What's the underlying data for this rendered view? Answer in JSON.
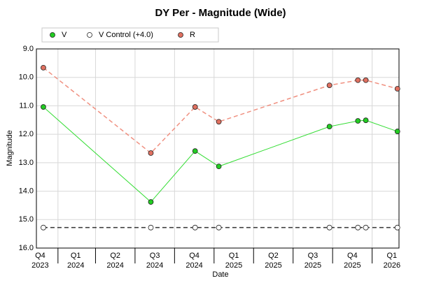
{
  "chart_data": {
    "type": "line",
    "title": "DY Per - Magnitude (Wide)",
    "x_label": "Date",
    "y_label": "Magnitude",
    "x": [
      2023.92,
      2024.6,
      2024.88,
      2025.03,
      2025.73,
      2025.91,
      2025.96,
      2026.16
    ],
    "series": [
      {
        "name": "V",
        "color": "#33dd33",
        "marker_fill": "#22cc22",
        "line_style": "solid",
        "values": [
          11.04,
          14.38,
          12.59,
          13.13,
          11.73,
          11.53,
          11.51,
          11.9
        ]
      },
      {
        "name": "V Control (+4.0)",
        "color": "#333333",
        "marker_fill": "#ffffff",
        "line_style": "dashed",
        "values": [
          15.28,
          15.28,
          15.28,
          15.28,
          15.28,
          15.28,
          15.28,
          15.28
        ]
      },
      {
        "name": "R",
        "color": "#f09080",
        "marker_fill": "#e07060",
        "line_style": "dashed",
        "values": [
          9.66,
          12.66,
          11.04,
          11.56,
          10.28,
          10.1,
          10.1,
          10.4
        ]
      }
    ],
    "xlim": [
      2023.876,
      2026.17
    ],
    "xticks": [
      {
        "value": 2023.9,
        "label": "Q4 2023"
      },
      {
        "value": 2024.125,
        "label": "Q1 2024"
      },
      {
        "value": 2024.375,
        "label": "Q2 2024"
      },
      {
        "value": 2024.625,
        "label": "Q3 2024"
      },
      {
        "value": 2024.875,
        "label": "Q4 2024"
      },
      {
        "value": 2025.125,
        "label": "Q1 2025"
      },
      {
        "value": 2025.375,
        "label": "Q2 2025"
      },
      {
        "value": 2025.625,
        "label": "Q3 2025"
      },
      {
        "value": 2025.875,
        "label": "Q4 2025"
      },
      {
        "value": 2026.125,
        "label": "Q1 2026"
      }
    ],
    "ylim": [
      9,
      16
    ],
    "y_inverted": true,
    "yticks": [
      {
        "value": 9,
        "label": "9.0"
      },
      {
        "value": 10,
        "label": "10.0"
      },
      {
        "value": 11,
        "label": "11.0"
      },
      {
        "value": 12,
        "label": "12.0"
      },
      {
        "value": 13,
        "label": "13.0"
      },
      {
        "value": 14,
        "label": "14.0"
      },
      {
        "value": 15,
        "label": "15.0"
      },
      {
        "value": 16,
        "label": "16.0"
      }
    ],
    "grid": true,
    "legend": "top"
  }
}
